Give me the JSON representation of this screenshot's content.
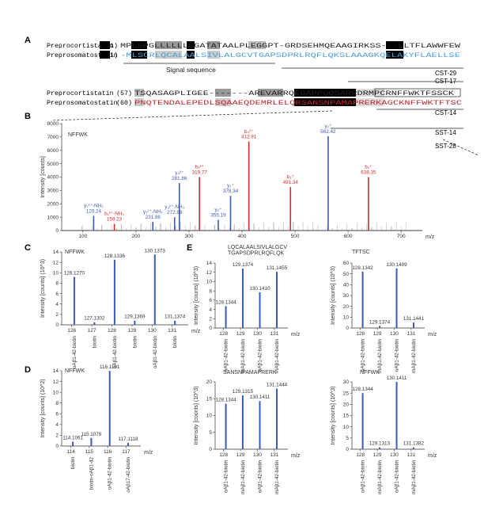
{
  "colors": {
    "blue": "#3b5bb5",
    "red": "#d22b2b",
    "green": "#2a8a2a",
    "grey": "#b8b8b8",
    "lightblue": "#4a9fd6",
    "orange": "#e07b20",
    "darkred": "#c0242c"
  },
  "panel_labels": {
    "a": "A",
    "b": "B",
    "c": "C",
    "d": "D",
    "e": "E"
  },
  "alignment": {
    "row1_name": "Preprocortistatin",
    "row1_num": "(1)",
    "row1_seq": "MPLSPGLLLLLLSGATATAALPLEGGPT-GRDSEHMQEAAGIRKSS---LLTFLAWWFEW",
    "row2_name": "Preprosomatostatin",
    "row2_num": "(1)",
    "row2_seq": "-MLSCRLQCALAALSIVLALGCVTGAPSDPRLRQFLQKSLAAAGKQELAKYFLAELLSE",
    "row3_name": "Preprocortistatin",
    "row3_num": "(57)",
    "row3_seq": "TSQASAGPLIGEE-------AREVARRQEGAPPQQSARRDRMPCRNFFWKTFSSCK",
    "row4_name": "Preprosomatostatin",
    "row4_num": "(60)",
    "row4_seq": "PNQTENDALEPEDLSQAAEQDEMRLELQRSANSNPAMAPRERKAGCKNFFWKTFTSC",
    "signal_label": "Signal sequence",
    "cst29": "CST-29",
    "cst17": "CST-17",
    "cst14": "CST-14",
    "sst14": "SST-14",
    "sst28": "SST-28"
  },
  "chart_data": [
    {
      "id": "B",
      "type": "bar",
      "title": "NFFWK",
      "ylabel": "Intensity [counts]",
      "xlabel": "m/z",
      "xlim": [
        60,
        740
      ],
      "ylim": [
        0,
        8000
      ],
      "xticks": [
        100,
        200,
        300,
        400,
        500,
        600,
        700
      ],
      "yticks": [
        0,
        1000,
        2000,
        3000,
        4000,
        5000,
        6000,
        7000,
        8000
      ],
      "peaks": [
        {
          "x": 120.24,
          "y": 1100,
          "label": "y₁²⁺-NH₃\n120.24",
          "color": "blue"
        },
        {
          "x": 159.23,
          "y": 500,
          "label": "b₁²⁺-NH₃\n159.23",
          "color": "red"
        },
        {
          "x": 231.86,
          "y": 650,
          "label": "y₂²⁺-NH₃\n231.86",
          "color": "blue"
        },
        {
          "x": 272.88,
          "y": 1000,
          "label": "y₃²⁺-NH₃\n272.88",
          "color": "blue"
        },
        {
          "x": 281.86,
          "y": 3550,
          "label": "y₄²⁺\n281.86",
          "color": "blue"
        },
        {
          "x": 319.77,
          "y": 4000,
          "label": "b₃²⁺\n319.77",
          "color": "red"
        },
        {
          "x": 355.19,
          "y": 800,
          "label": "y₂⁺\n355.19",
          "color": "blue"
        },
        {
          "x": 378.34,
          "y": 2600,
          "label": "y₁⁺\n378.34",
          "color": "blue"
        },
        {
          "x": 412.91,
          "y": 6650,
          "label": "b₄²⁺\n412.91",
          "color": "red"
        },
        {
          "x": 491.34,
          "y": 3250,
          "label": "b₃⁺\n491.34",
          "color": "red"
        },
        {
          "x": 562.42,
          "y": 7050,
          "label": "y₂⁺\n562.42",
          "color": "blue"
        },
        {
          "x": 638.35,
          "y": 4000,
          "label": "b₂⁺\n638.35",
          "color": "red"
        }
      ]
    },
    {
      "id": "C",
      "type": "bar",
      "title": "NFFWK",
      "title_color": "green",
      "ylabel": "Intensity [counts] (10^3)",
      "xlabel": "m/z",
      "xlim": [
        125.5,
        131.8
      ],
      "ylim": [
        0,
        14
      ],
      "xticks": [
        126,
        127,
        128,
        129,
        130,
        131
      ],
      "yticks": [
        0,
        2,
        4,
        6,
        8,
        10,
        12,
        14
      ],
      "peaks": [
        {
          "x": 126.127,
          "y": 9.2,
          "label": "126.1270"
        },
        {
          "x": 127.1302,
          "y": 0.5,
          "label": "127.1302"
        },
        {
          "x": 128.1336,
          "y": 12.5,
          "label": "128.1336"
        },
        {
          "x": 129.1369,
          "y": 0.8,
          "label": "129.1369"
        },
        {
          "x": 130.1373,
          "y": 13.5,
          "label": "130.1373"
        },
        {
          "x": 131.1374,
          "y": 0.8,
          "label": "131.1374"
        }
      ],
      "categories": [
        "oAβ1-42-biotin",
        "biotin",
        "oAβ1-42-biotin",
        "biotin",
        "oAβ1-42-biotin",
        "biotin"
      ]
    },
    {
      "id": "D",
      "type": "bar",
      "title": "NFFWK",
      "title_color": "green",
      "ylabel": "Intensity [counts] (10^2)",
      "xlabel": "m/z",
      "xlim": [
        113.5,
        117.8
      ],
      "ylim": [
        0,
        14
      ],
      "xticks": [
        114,
        115,
        116,
        117
      ],
      "yticks": [
        0,
        2,
        4,
        6,
        8,
        10,
        12,
        14
      ],
      "peaks": [
        {
          "x": 114.1061,
          "y": 0.8,
          "label": "114.1061"
        },
        {
          "x": 115.1078,
          "y": 1.5,
          "label": "115.1078"
        },
        {
          "x": 116.1101,
          "y": 14,
          "label": "116.1101"
        },
        {
          "x": 117.1118,
          "y": 0.6,
          "label": "117.1118"
        }
      ],
      "categories": [
        "biotin",
        "biotin-oAβ1-42",
        "oAβ1-42-biotin",
        "oAβ17-42-biotin"
      ]
    },
    {
      "id": "E1",
      "type": "bar",
      "title": "LQCALAALSIVLALGCV\nTGAPSDPRLRQFLQK",
      "title_color": "lightblue",
      "ylabel": "Intensity [counts] (10^3)",
      "xlabel": "m/z",
      "xlim": [
        127.5,
        131.8
      ],
      "ylim": [
        0,
        14
      ],
      "xticks": [
        128,
        129,
        130,
        131
      ],
      "yticks": [
        0,
        2,
        4,
        6,
        8,
        10,
        12,
        14
      ],
      "peaks": [
        {
          "x": 128.1344,
          "y": 4.7,
          "label": "128.1344"
        },
        {
          "x": 129.1374,
          "y": 12.8,
          "label": "129.1374"
        },
        {
          "x": 130.141,
          "y": 7.7,
          "label": "130.1410"
        },
        {
          "x": 131.1455,
          "y": 12.1,
          "label": "131.1455"
        }
      ],
      "categories": [
        "oAβ1-42-biotin",
        "mAβ1-42-biotin",
        "oAβ1-42-biotin",
        "mAβ1-42-biotin"
      ]
    },
    {
      "id": "E2",
      "type": "bar",
      "title": "TFTSC",
      "title_color": "orange",
      "ylabel": "Intensity [counts] (10^3)",
      "xlabel": "m/z",
      "xlim": [
        127.5,
        131.8
      ],
      "ylim": [
        0,
        60
      ],
      "xticks": [
        128,
        129,
        130,
        131
      ],
      "yticks": [
        0,
        10,
        20,
        30,
        40,
        50,
        60
      ],
      "peaks": [
        {
          "x": 128.1342,
          "y": 52,
          "label": "128.1342"
        },
        {
          "x": 129.1374,
          "y": 2,
          "label": "129.1374"
        },
        {
          "x": 130.1409,
          "y": 55,
          "label": "130.1409"
        },
        {
          "x": 131.1441,
          "y": 5,
          "label": "131.1441"
        }
      ],
      "categories": [
        "oAβ1-42-biotin",
        "mAβ1-42-biotin",
        "oAβ1-42-biotin",
        "mAβ1-42-biotin"
      ]
    },
    {
      "id": "E3",
      "type": "bar",
      "title": "SANSNPAMAPRERK",
      "title_color": "darkred",
      "ylabel": "Intensity [counts] (10^3)",
      "xlabel": "m/z",
      "xlim": [
        127.5,
        131.8
      ],
      "ylim": [
        0,
        20
      ],
      "xticks": [
        128,
        129,
        130,
        131
      ],
      "yticks": [
        0,
        5,
        10,
        15,
        20
      ],
      "peaks": [
        {
          "x": 128.1344,
          "y": 13.5,
          "label": "128.1344"
        },
        {
          "x": 129.1315,
          "y": 16,
          "label": "129.1315"
        },
        {
          "x": 130.1411,
          "y": 14.3,
          "label": "130.1411"
        },
        {
          "x": 131.1444,
          "y": 18,
          "label": "131.1444"
        }
      ],
      "categories": [
        "oAβ1-42-biotin",
        "mAβ1-42-biotin",
        "oAβ1-42-biotin",
        "mAβ1-42-biotin"
      ]
    },
    {
      "id": "E4",
      "type": "bar",
      "title": "NFFWK",
      "title_color": "green",
      "ylabel": "Intensity [counts] (10^3)",
      "xlabel": "m/z",
      "xlim": [
        127.5,
        131.8
      ],
      "ylim": [
        0,
        30
      ],
      "xticks": [
        128,
        129,
        130,
        131
      ],
      "yticks": [
        0,
        5,
        10,
        15,
        20,
        25,
        30
      ],
      "peaks": [
        {
          "x": 128.1344,
          "y": 25,
          "label": "128.1344"
        },
        {
          "x": 129.1313,
          "y": 0.8,
          "label": "129.1313"
        },
        {
          "x": 130.1411,
          "y": 30,
          "label": "130.1411"
        },
        {
          "x": 131.1382,
          "y": 0.8,
          "label": "131.1382"
        }
      ],
      "categories": [
        "oAβ1-42-biotin",
        "mAβ1-42-biotin",
        "oAβ1-42-biotin",
        "mAβ1-42-biotin"
      ]
    }
  ]
}
